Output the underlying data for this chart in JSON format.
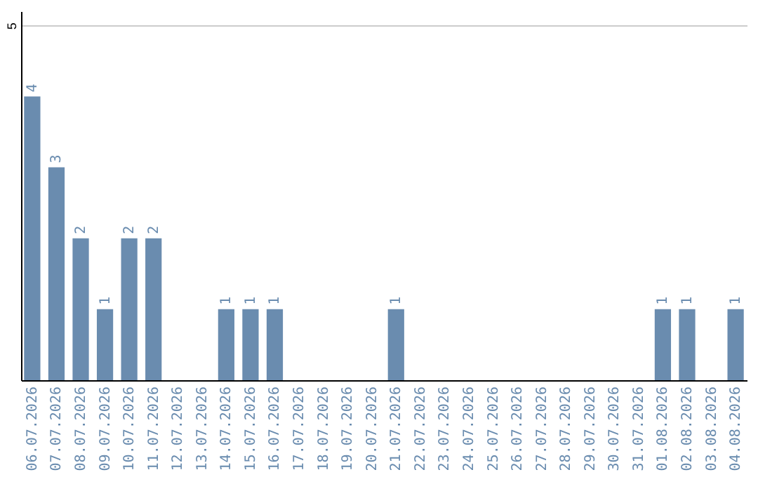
{
  "chart_data": {
    "type": "bar",
    "categories": [
      "06.07.2026",
      "07.07.2026",
      "08.07.2026",
      "09.07.2026",
      "10.07.2026",
      "11.07.2026",
      "12.07.2026",
      "13.07.2026",
      "14.07.2026",
      "15.07.2026",
      "16.07.2026",
      "17.07.2026",
      "18.07.2026",
      "19.07.2026",
      "20.07.2026",
      "21.07.2026",
      "22.07.2026",
      "23.07.2026",
      "24.07.2026",
      "25.07.2026",
      "26.07.2026",
      "27.07.2026",
      "28.07.2026",
      "29.07.2026",
      "30.07.2026",
      "31.07.2026",
      "01.08.2026",
      "02.08.2026",
      "03.08.2026",
      "04.08.2026"
    ],
    "values": [
      4,
      3,
      2,
      1,
      2,
      2,
      0,
      0,
      1,
      1,
      1,
      0,
      0,
      0,
      0,
      1,
      0,
      0,
      0,
      0,
      0,
      0,
      0,
      0,
      0,
      0,
      1,
      1,
      0,
      1
    ],
    "value_labels": [
      "4",
      "3",
      "2",
      "1",
      "2",
      "2",
      null,
      null,
      "1",
      "1",
      "1",
      null,
      null,
      null,
      null,
      "1",
      null,
      null,
      null,
      null,
      null,
      null,
      null,
      null,
      null,
      null,
      "1",
      "1",
      null,
      "1"
    ],
    "color": "#6a8caf",
    "ylim": [
      0,
      5.2
    ],
    "yticks": [
      5
    ],
    "grid": "y"
  }
}
